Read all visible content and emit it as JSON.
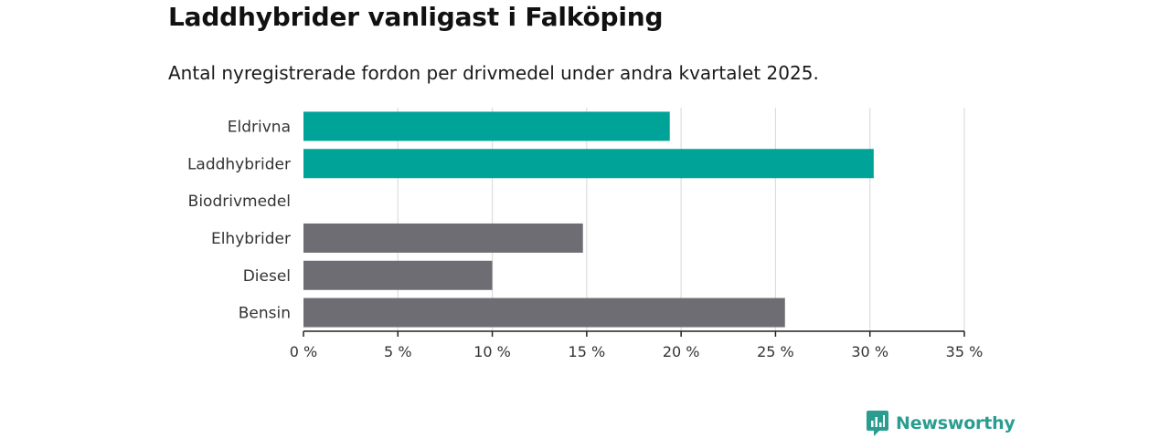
{
  "colors": {
    "highlight": "#00a398",
    "default": "#6e6d73",
    "grid": "#dddddd",
    "axis": "#222222",
    "brand": "#2a9d8f"
  },
  "logo": {
    "text": "Newsworthy",
    "icon": "newsworthy-logo-icon"
  },
  "chart_data": {
    "type": "bar",
    "orientation": "horizontal",
    "title": "Laddhybrider vanligast i Falköping",
    "subtitle": "Antal nyregistrerade fordon per drivmedel under andra kvartalet 2025.",
    "categories": [
      "Eldrivna",
      "Laddhybrider",
      "Biodrivmedel",
      "Elhybrider",
      "Diesel",
      "Bensin"
    ],
    "values": [
      19.4,
      30.2,
      0,
      14.8,
      10.0,
      25.5
    ],
    "highlighted": [
      true,
      true,
      false,
      false,
      false,
      false
    ],
    "xlim": [
      0,
      35
    ],
    "xticks": [
      0,
      5,
      10,
      15,
      20,
      25,
      30,
      35
    ],
    "xtick_labels": [
      "0 %",
      "5 %",
      "10 %",
      "15 %",
      "20 %",
      "25 %",
      "30 %",
      "35 %"
    ],
    "grid": true
  }
}
